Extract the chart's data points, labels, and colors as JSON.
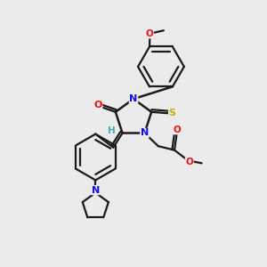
{
  "background_color": "#ebebeb",
  "bond_color": "#1a1a1a",
  "atom_colors": {
    "N": "#1010ee",
    "O": "#ee1010",
    "S": "#ccaa00",
    "H": "#44aaaa",
    "C": "#1a1a1a"
  },
  "figsize": [
    3.0,
    3.0
  ],
  "dpi": 100,
  "xlim": [
    0,
    10
  ],
  "ylim": [
    0,
    10
  ]
}
